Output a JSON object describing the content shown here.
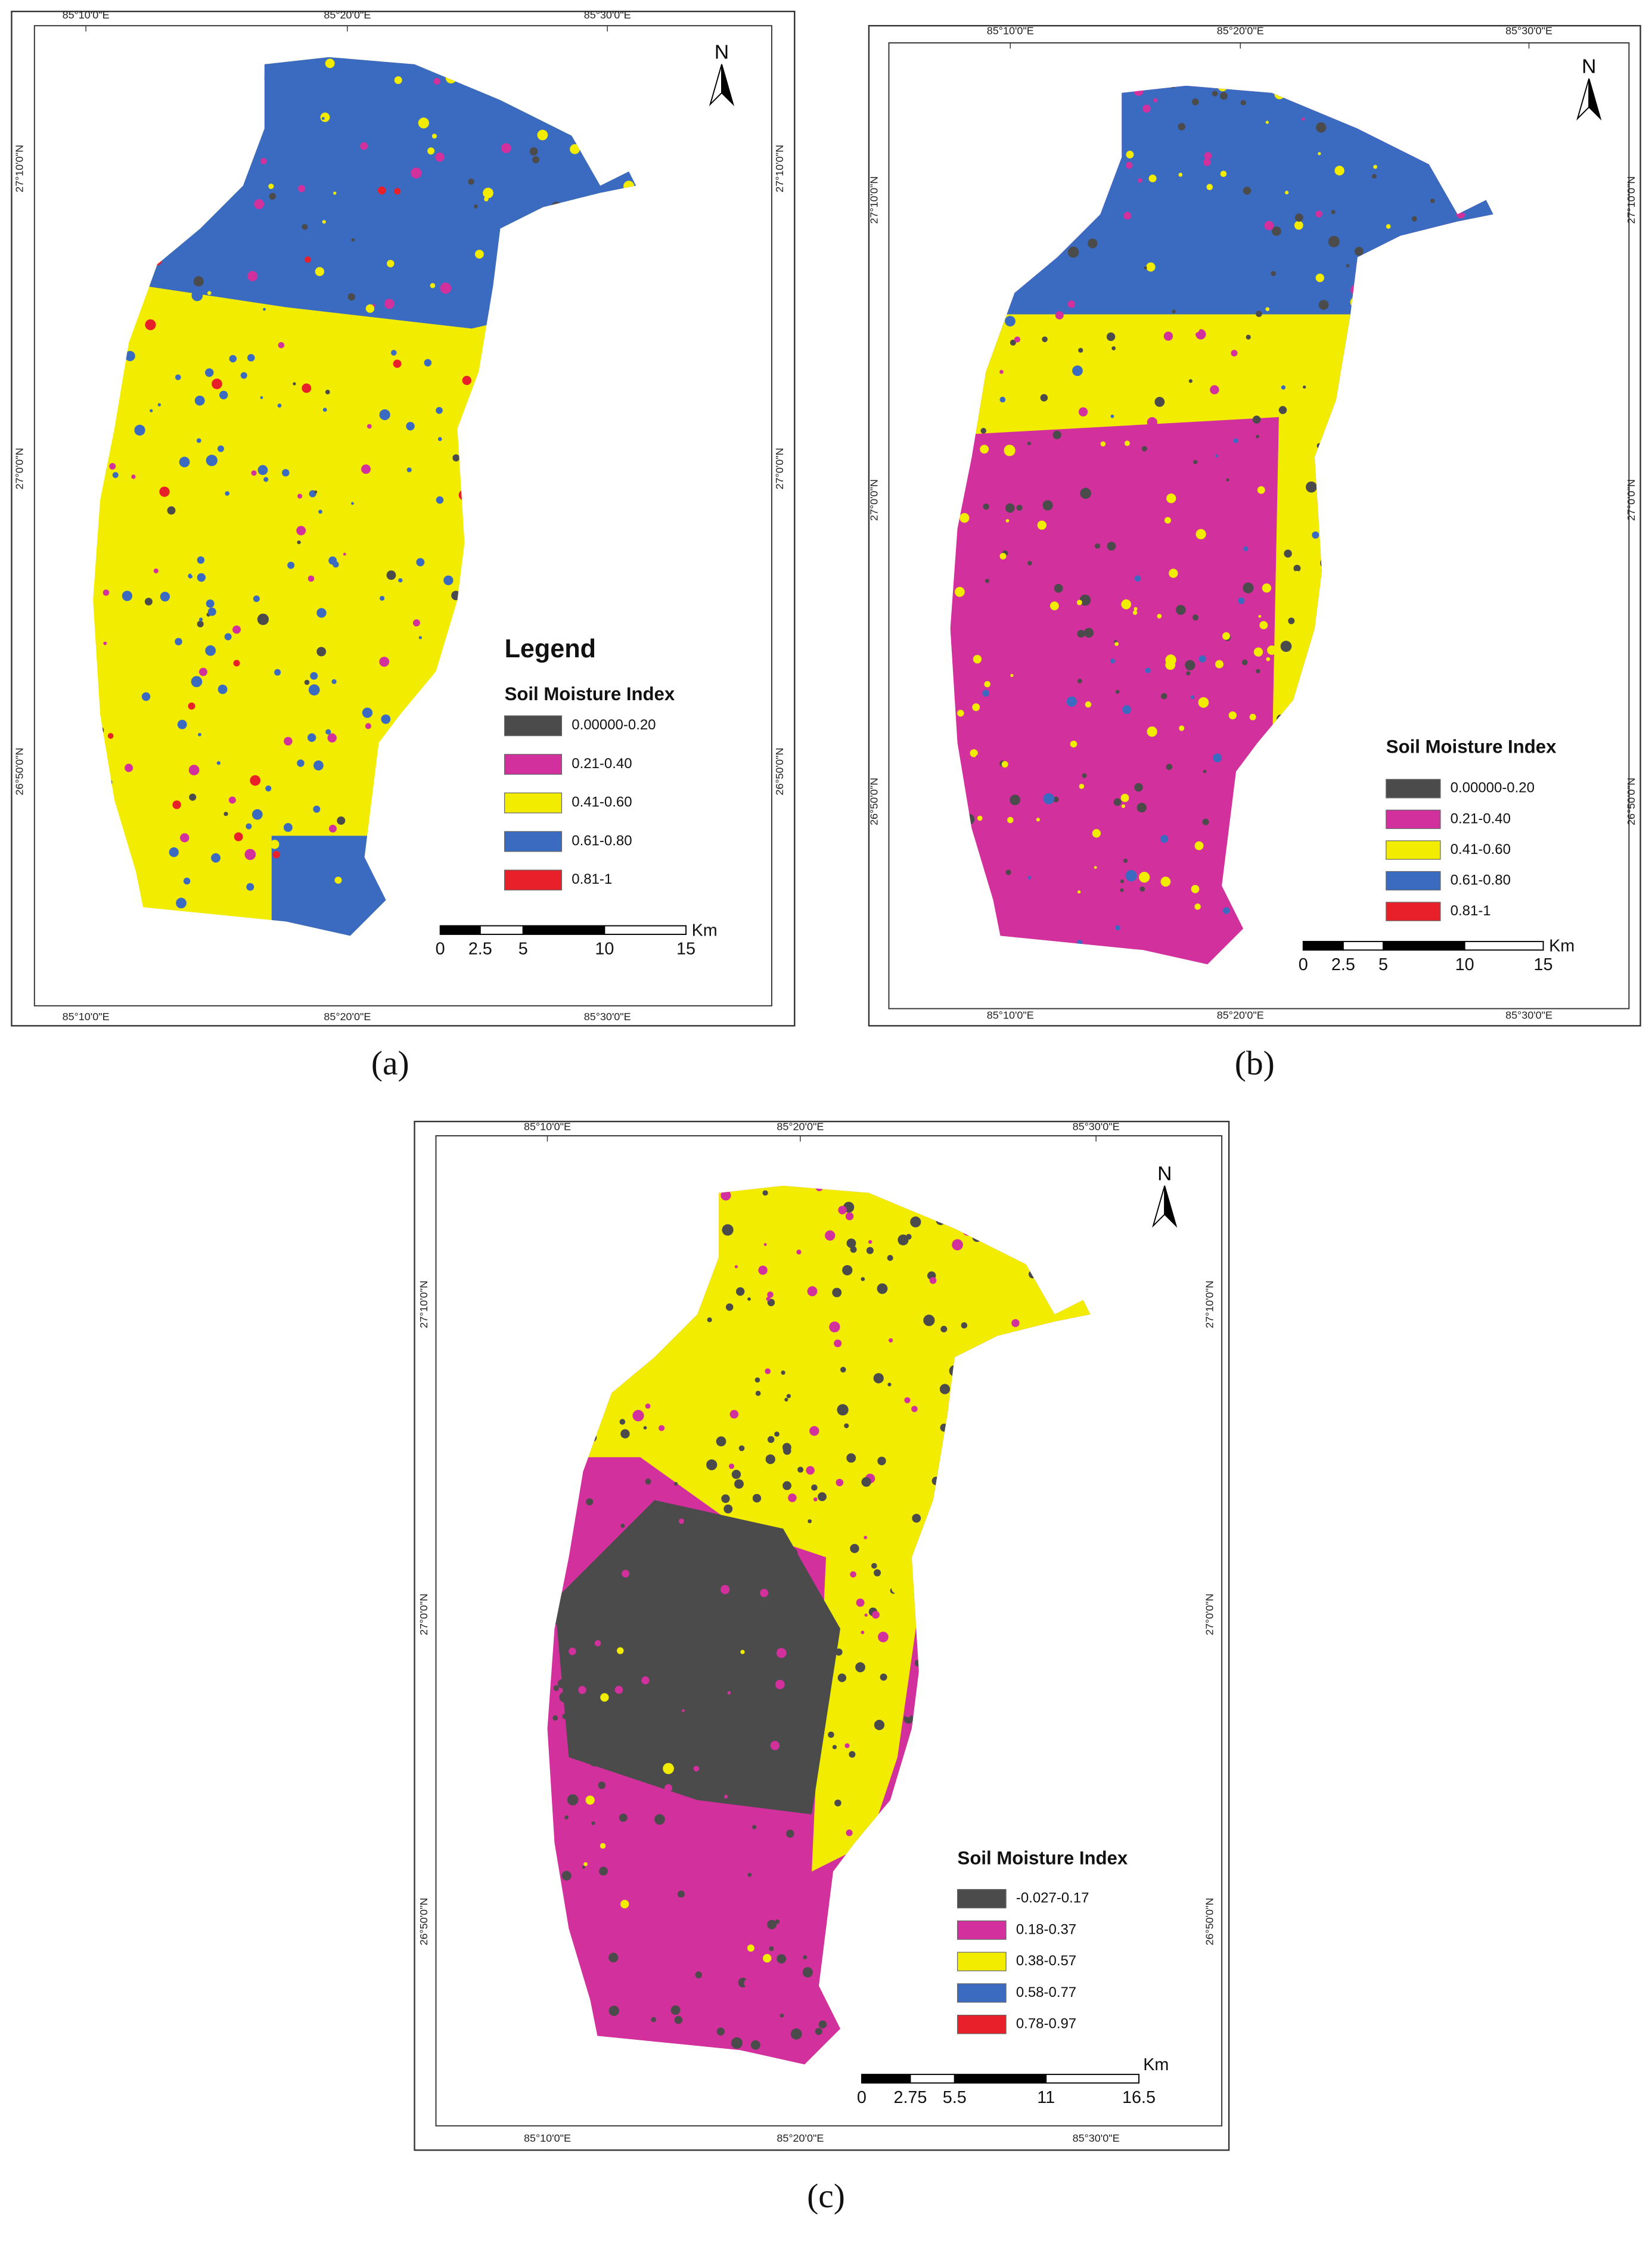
{
  "panels": [
    {
      "caption": "(a)",
      "top_labels": [
        "85°10'0\"E",
        "85°20'0\"E",
        "85°30'0\"E"
      ],
      "bottom_labels": [
        "85°10'0\"E",
        "85°20'0\"E",
        "85°30'0\"E"
      ],
      "left_labels": [
        "27°10'0\"N",
        "27°0'0\"N",
        "26°50'0\"N"
      ],
      "right_labels": [
        "27°10'0\"N",
        "27°0'0\"N",
        "26°50'0\"N"
      ],
      "north": "N",
      "legend": {
        "heading": "Legend",
        "title": "Soil Moisture Index",
        "items": [
          {
            "label": "0.00000-0.20",
            "color": "#4b4b4b"
          },
          {
            "label": "0.21-0.40",
            "color": "#d2309c"
          },
          {
            "label": "0.41-0.60",
            "color": "#f2ec00"
          },
          {
            "label": "0.61-0.80",
            "color": "#3b6bc0"
          },
          {
            "label": "0.81-1",
            "color": "#e8202a"
          }
        ]
      },
      "scale": {
        "labels": [
          "0",
          "2.5",
          "5",
          "10",
          "15"
        ],
        "unit": "Km"
      }
    },
    {
      "caption": "(b)",
      "top_labels": [
        "85°10'0\"E",
        "85°20'0\"E",
        "85°30'0\"E"
      ],
      "bottom_labels": [
        "85°10'0\"E",
        "85°20'0\"E",
        "85°30'0\"E"
      ],
      "left_labels": [
        "27°10'0\"N",
        "27°0'0\"N",
        "26°50'0\"N"
      ],
      "right_labels": [
        "27°10'0\"N",
        "27°0'0\"N",
        "26°50'0\"N"
      ],
      "north": "N",
      "legend": {
        "title": "Soil Moisture Index",
        "items": [
          {
            "label": "0.00000-0.20",
            "color": "#4b4b4b"
          },
          {
            "label": "0.21-0.40",
            "color": "#d2309c"
          },
          {
            "label": "0.41-0.60",
            "color": "#f2ec00"
          },
          {
            "label": "0.61-0.80",
            "color": "#3b6bc0"
          },
          {
            "label": "0.81-1",
            "color": "#e8202a"
          }
        ]
      },
      "scale": {
        "labels": [
          "0",
          "2.5",
          "5",
          "10",
          "15"
        ],
        "unit": "Km"
      }
    },
    {
      "caption": "(c)",
      "top_labels": [
        "85°10'0\"E",
        "85°20'0\"E",
        "85°30'0\"E"
      ],
      "bottom_labels": [
        "85°10'0\"E",
        "85°20'0\"E",
        "85°30'0\"E"
      ],
      "left_labels": [
        "27°10'0\"N",
        "27°0'0\"N",
        "26°50'0\"N"
      ],
      "right_labels": [
        "27°10'0\"N",
        "27°0'0\"N",
        "26°50'0\"N"
      ],
      "north": "N",
      "legend": {
        "title": "Soil Moisture Index",
        "items": [
          {
            "label": "-0.027-0.17",
            "color": "#4b4b4b"
          },
          {
            "label": "0.18-0.37",
            "color": "#d2309c"
          },
          {
            "label": "0.38-0.57",
            "color": "#f2ec00"
          },
          {
            "label": "0.58-0.77",
            "color": "#3b6bc0"
          },
          {
            "label": "0.78-0.97",
            "color": "#e8202a"
          }
        ]
      },
      "scale": {
        "labels": [
          "0",
          "2.75",
          "5.5",
          "11",
          "16.5"
        ],
        "unit": "Km"
      }
    }
  ]
}
